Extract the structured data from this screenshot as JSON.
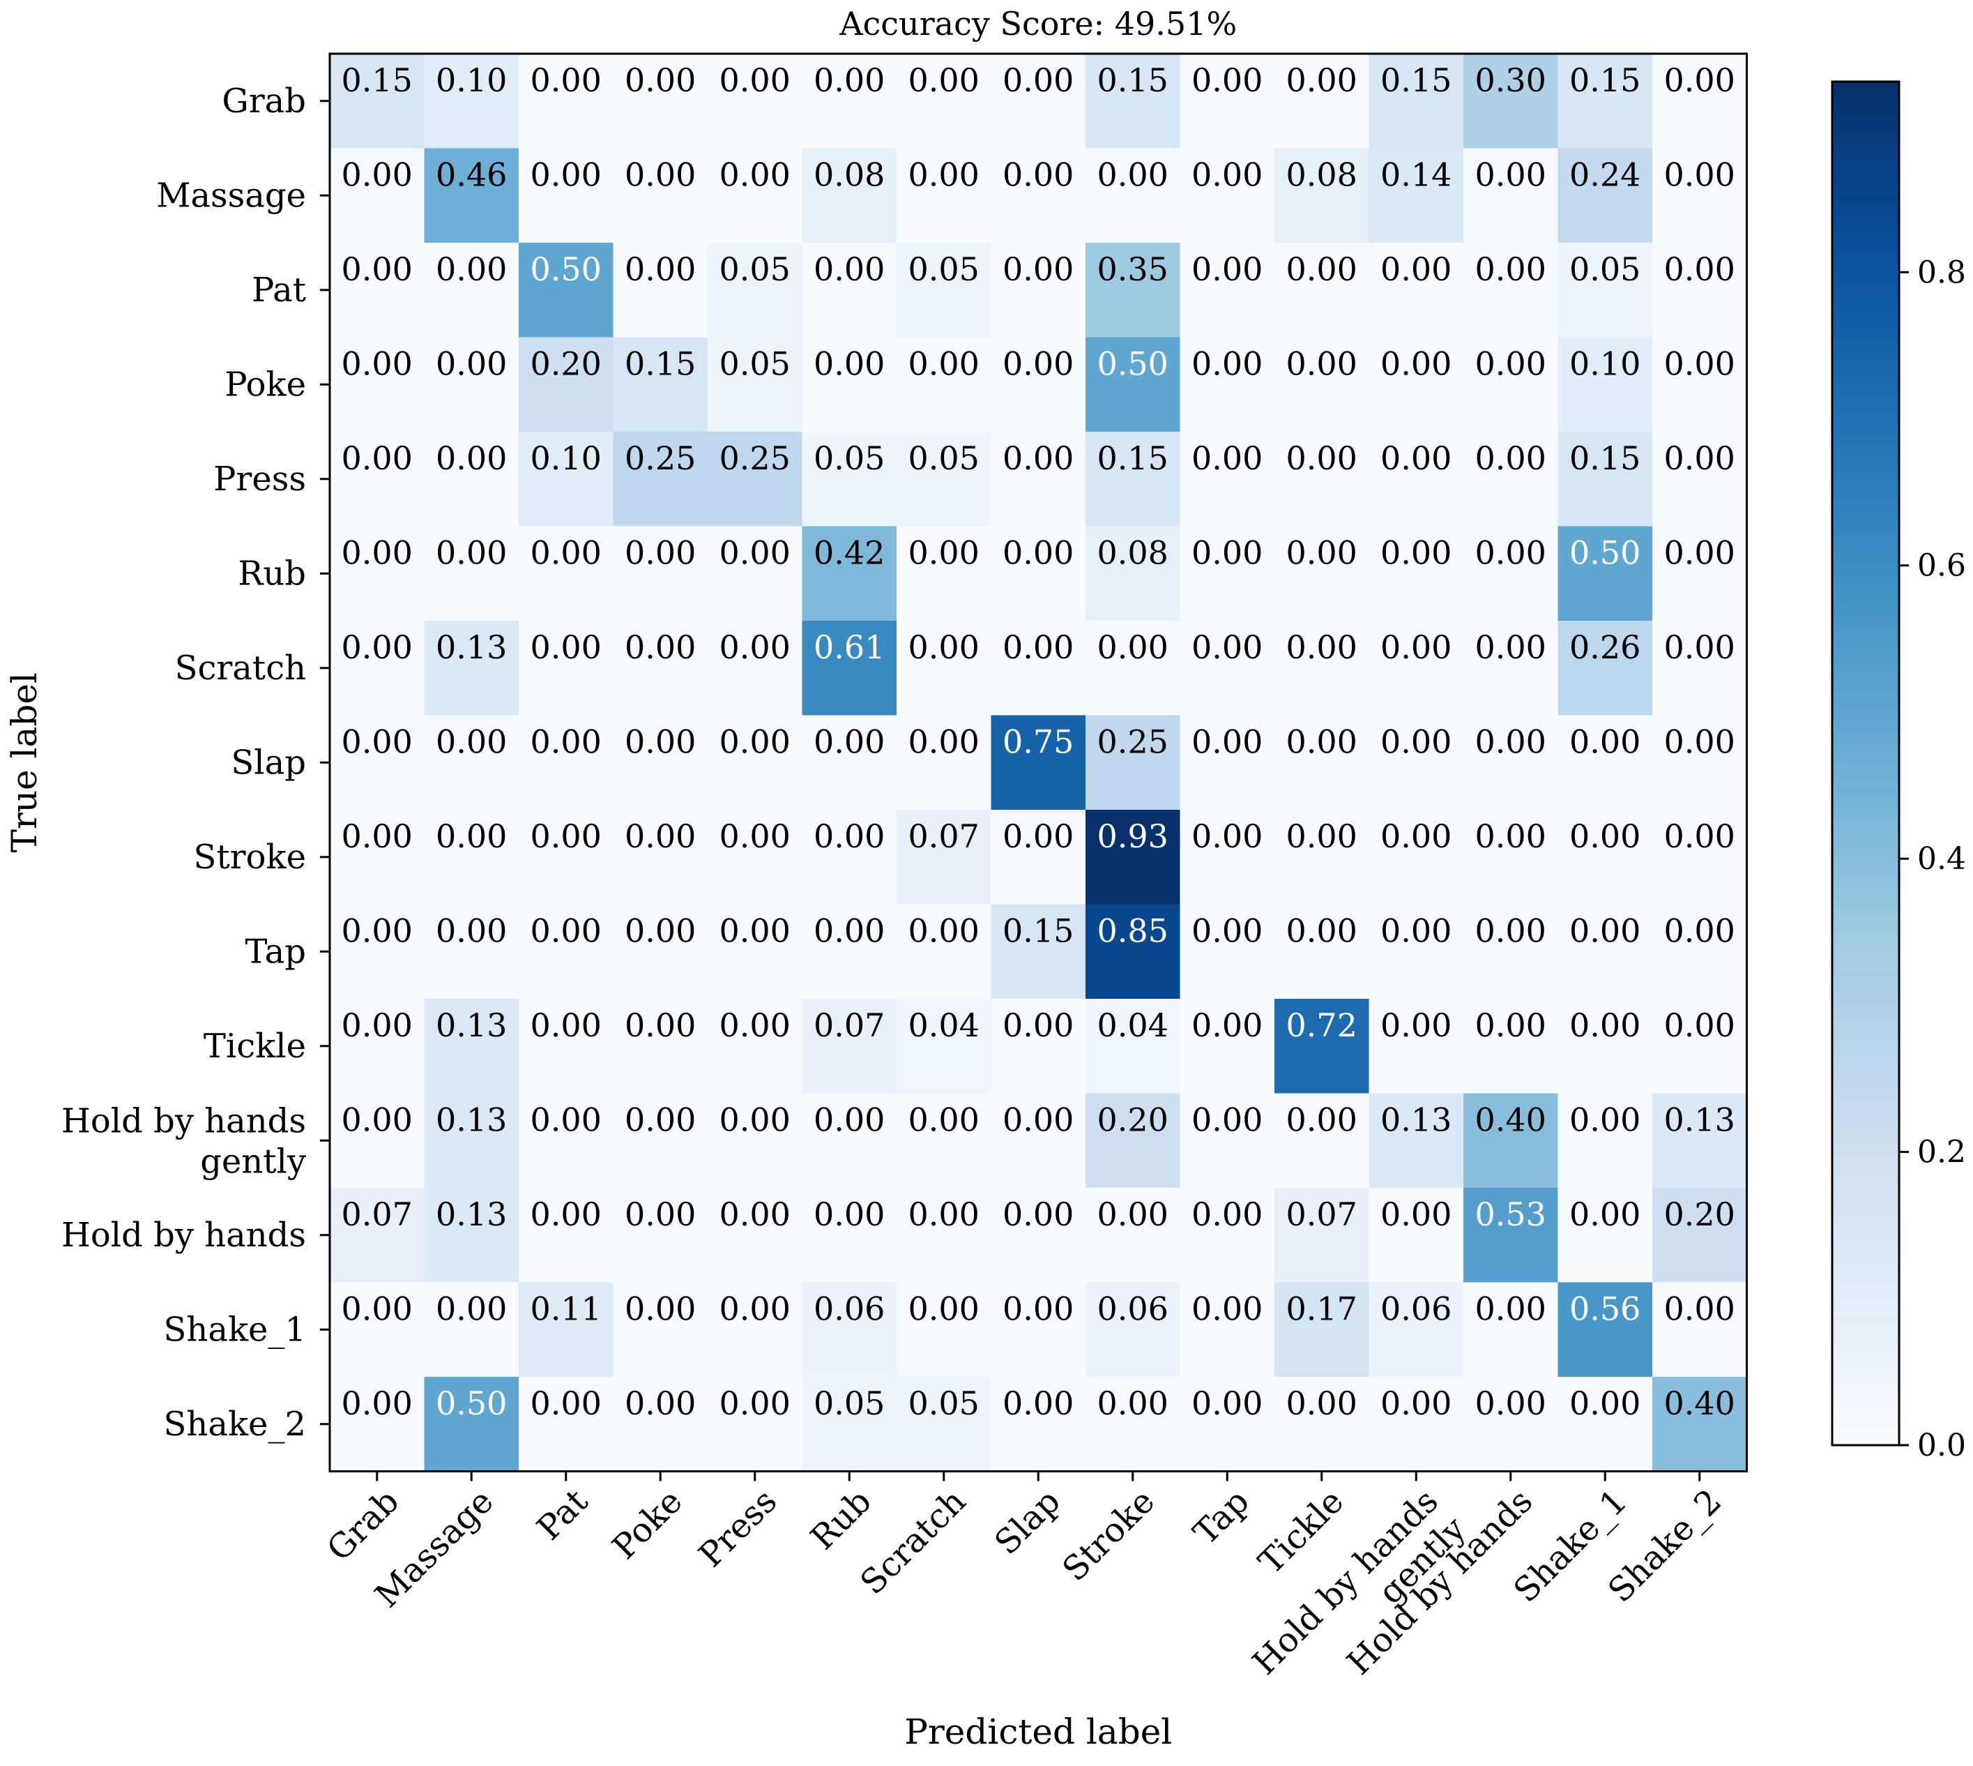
{
  "chart_data": {
    "type": "heatmap",
    "title": "Accuracy Score: 49.51%",
    "xlabel": "Predicted label",
    "ylabel": "True label",
    "row_labels": [
      "Grab",
      "Massage",
      "Pat",
      "Poke",
      "Press",
      "Rub",
      "Scratch",
      "Slap",
      "Stroke",
      "Tap",
      "Tickle",
      "Hold by hands gently",
      "Hold by hands",
      "Shake_1",
      "Shake_2"
    ],
    "col_labels": [
      "Grab",
      "Massage",
      "Pat",
      "Poke",
      "Press",
      "Rub",
      "Scratch",
      "Slap",
      "Stroke",
      "Tap",
      "Tickle",
      "Hold by hands gently",
      "Hold by hands",
      "Shake_1",
      "Shake_2"
    ],
    "values": [
      [
        0.15,
        0.1,
        0.0,
        0.0,
        0.0,
        0.0,
        0.0,
        0.0,
        0.15,
        0.0,
        0.0,
        0.15,
        0.3,
        0.15,
        0.0
      ],
      [
        0.0,
        0.46,
        0.0,
        0.0,
        0.0,
        0.08,
        0.0,
        0.0,
        0.0,
        0.0,
        0.08,
        0.14,
        0.0,
        0.24,
        0.0
      ],
      [
        0.0,
        0.0,
        0.5,
        0.0,
        0.05,
        0.0,
        0.05,
        0.0,
        0.35,
        0.0,
        0.0,
        0.0,
        0.0,
        0.05,
        0.0
      ],
      [
        0.0,
        0.0,
        0.2,
        0.15,
        0.05,
        0.0,
        0.0,
        0.0,
        0.5,
        0.0,
        0.0,
        0.0,
        0.0,
        0.1,
        0.0
      ],
      [
        0.0,
        0.0,
        0.1,
        0.25,
        0.25,
        0.05,
        0.05,
        0.0,
        0.15,
        0.0,
        0.0,
        0.0,
        0.0,
        0.15,
        0.0
      ],
      [
        0.0,
        0.0,
        0.0,
        0.0,
        0.0,
        0.42,
        0.0,
        0.0,
        0.08,
        0.0,
        0.0,
        0.0,
        0.0,
        0.5,
        0.0
      ],
      [
        0.0,
        0.13,
        0.0,
        0.0,
        0.0,
        0.61,
        0.0,
        0.0,
        0.0,
        0.0,
        0.0,
        0.0,
        0.0,
        0.26,
        0.0
      ],
      [
        0.0,
        0.0,
        0.0,
        0.0,
        0.0,
        0.0,
        0.0,
        0.75,
        0.25,
        0.0,
        0.0,
        0.0,
        0.0,
        0.0,
        0.0
      ],
      [
        0.0,
        0.0,
        0.0,
        0.0,
        0.0,
        0.0,
        0.07,
        0.0,
        0.93,
        0.0,
        0.0,
        0.0,
        0.0,
        0.0,
        0.0
      ],
      [
        0.0,
        0.0,
        0.0,
        0.0,
        0.0,
        0.0,
        0.0,
        0.15,
        0.85,
        0.0,
        0.0,
        0.0,
        0.0,
        0.0,
        0.0
      ],
      [
        0.0,
        0.13,
        0.0,
        0.0,
        0.0,
        0.07,
        0.04,
        0.0,
        0.04,
        0.0,
        0.72,
        0.0,
        0.0,
        0.0,
        0.0
      ],
      [
        0.0,
        0.13,
        0.0,
        0.0,
        0.0,
        0.0,
        0.0,
        0.0,
        0.2,
        0.0,
        0.0,
        0.13,
        0.4,
        0.0,
        0.13
      ],
      [
        0.07,
        0.13,
        0.0,
        0.0,
        0.0,
        0.0,
        0.0,
        0.0,
        0.0,
        0.0,
        0.07,
        0.0,
        0.53,
        0.0,
        0.2
      ],
      [
        0.0,
        0.0,
        0.11,
        0.0,
        0.0,
        0.06,
        0.0,
        0.0,
        0.06,
        0.0,
        0.17,
        0.06,
        0.0,
        0.56,
        0.0
      ],
      [
        0.0,
        0.5,
        0.0,
        0.0,
        0.0,
        0.05,
        0.05,
        0.0,
        0.0,
        0.0,
        0.0,
        0.0,
        0.0,
        0.0,
        0.4
      ]
    ],
    "value_range": [
      0.0,
      0.93
    ],
    "colormap": "Blues",
    "colormap_stops": [
      "#f7fbff",
      "#deebf7",
      "#c6dbef",
      "#9ecae1",
      "#6baed6",
      "#4292c6",
      "#2171b5",
      "#08519c",
      "#08306b"
    ],
    "colorbar_ticks": [
      "0.0",
      "0.2",
      "0.4",
      "0.6",
      "0.8"
    ],
    "grid": false,
    "legend": "colorbar right"
  }
}
